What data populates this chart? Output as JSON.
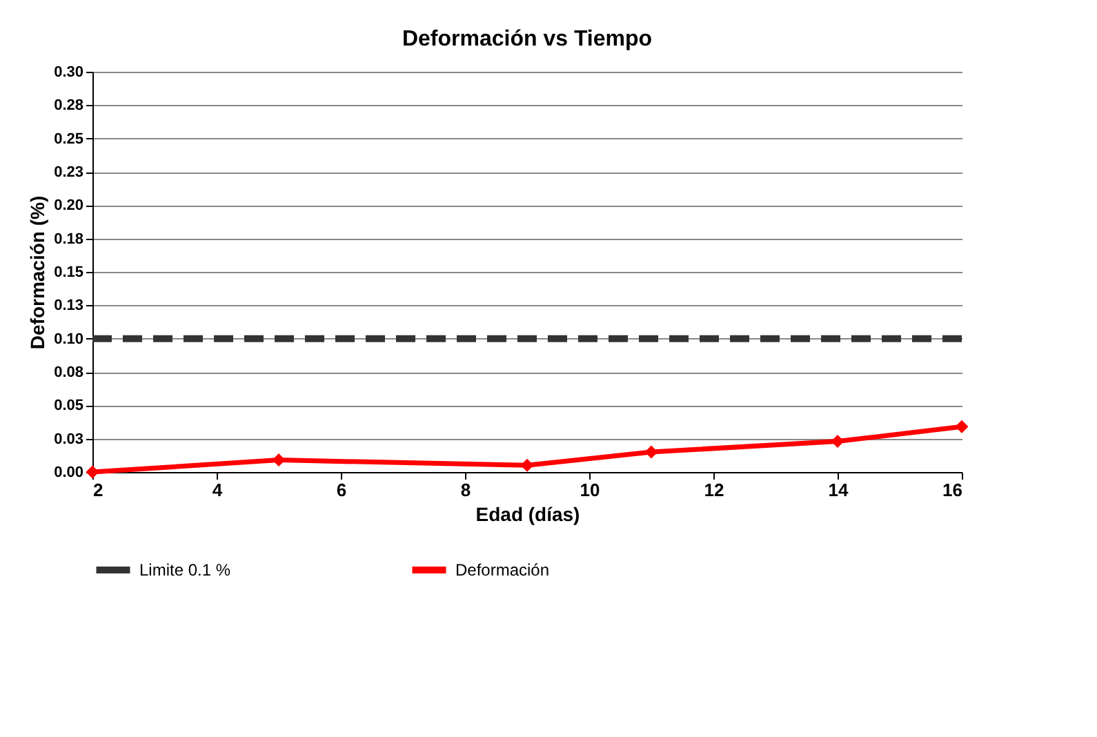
{
  "chart_data": {
    "type": "line",
    "title": "Deformación vs Tiempo",
    "xlabel": "Edad (días)",
    "ylabel": "Deformación  (%)",
    "x": [
      2,
      5,
      9,
      11,
      14,
      16
    ],
    "series": [
      {
        "name": "Deformación",
        "color": "#ff0000",
        "values": [
          0,
          0.009,
          0.005,
          0.015,
          0.023,
          0.034
        ]
      }
    ],
    "xlim": [
      2,
      16
    ],
    "xticks": [
      2,
      4,
      6,
      8,
      10,
      12,
      14,
      16
    ],
    "ylim": [
      0,
      0.3
    ],
    "yticks": [
      {
        "value": 0,
        "label": "0.00"
      },
      {
        "value": 0.025,
        "label": "0.03"
      },
      {
        "value": 0.05,
        "label": "0.05"
      },
      {
        "value": 0.075,
        "label": "0.08"
      },
      {
        "value": 0.1,
        "label": "0.10"
      },
      {
        "value": 0.125,
        "label": "0.13"
      },
      {
        "value": 0.15,
        "label": "0.15"
      },
      {
        "value": 0.175,
        "label": "0.18"
      },
      {
        "value": 0.2,
        "label": "0.20"
      },
      {
        "value": 0.225,
        "label": "0.23"
      },
      {
        "value": 0.25,
        "label": "0.25"
      },
      {
        "value": 0.275,
        "label": "0.28"
      },
      {
        "value": 0.3,
        "label": "0.30"
      }
    ],
    "ref_lines": [
      {
        "axis": "y",
        "value": 0.1,
        "label": "Limite 0.1 %",
        "color": "#333333",
        "line_style": "dashed"
      }
    ],
    "grid": "y",
    "legend": "bottom",
    "marker": "diamond",
    "line_style": "solid"
  }
}
